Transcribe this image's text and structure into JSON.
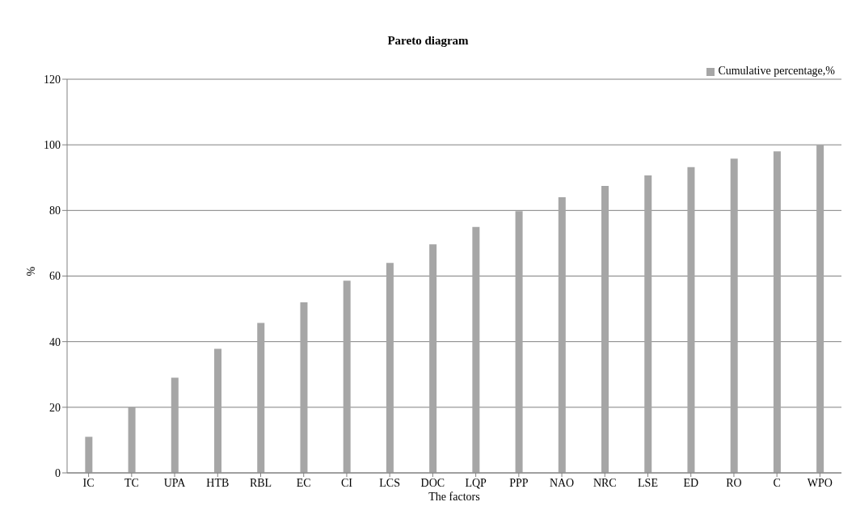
{
  "chart_data": {
    "type": "bar",
    "title": "Pareto diagram",
    "xlabel": "The factors",
    "ylabel": "%",
    "categories": [
      "IC",
      "TC",
      "UPA",
      "HTB",
      "RBL",
      "EC",
      "CI",
      "LCS",
      "DOC",
      "LQP",
      "PPP",
      "NAO",
      "NRC",
      "LSE",
      "ED",
      "RO",
      "C",
      "WPO"
    ],
    "series": [
      {
        "name": "Cumulative percentage,%",
        "color": "#a6a6a6",
        "values": [
          11,
          20,
          29,
          37.8,
          45.7,
          52,
          58.6,
          64,
          69.7,
          75,
          79.8,
          84,
          87.5,
          90.7,
          93.2,
          95.8,
          98,
          100
        ]
      }
    ],
    "ylim": [
      0,
      120
    ],
    "yticks": [
      0,
      20,
      40,
      60,
      80,
      100,
      120
    ],
    "grid": "y",
    "legend": "top right"
  }
}
